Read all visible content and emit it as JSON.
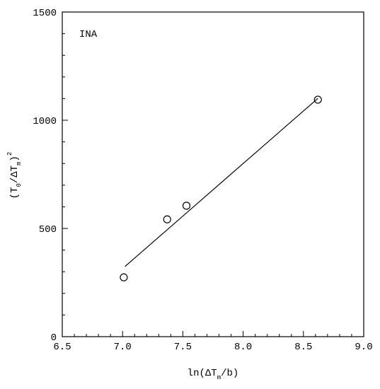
{
  "chart_data": {
    "type": "scatter",
    "annotation": "INA",
    "xlabel": [
      "ln(ΔT",
      "m",
      "/b)"
    ],
    "ylabel": [
      "(T",
      "0",
      "/ΔT",
      "m",
      ")",
      "2"
    ],
    "series": [
      {
        "marker": "open-circle",
        "color": "#000000",
        "x": [
          7.01,
          7.37,
          7.53,
          8.62
        ],
        "values": [
          274,
          542,
          605,
          1095
        ]
      }
    ],
    "fit_line": {
      "color": "#000000",
      "x": [
        7.02,
        8.62
      ],
      "values": [
        324,
        1101
      ]
    },
    "xlim": [
      6.5,
      9.0
    ],
    "xticks": [
      6.5,
      {
        "value": 7,
        "label": "7.0"
      },
      7.5,
      {
        "value": 8,
        "label": "8.0"
      },
      8.5,
      {
        "value": 9,
        "label": "9.0"
      }
    ],
    "x_minor_ticks": [
      6.6,
      6.7,
      6.8,
      6.9,
      7.1,
      7.2,
      7.3,
      7.4,
      7.6,
      7.7,
      7.8,
      7.9,
      8.1,
      8.2,
      8.3,
      8.4,
      8.6,
      8.7,
      8.8,
      8.9
    ],
    "ylim": [
      0,
      1500
    ],
    "yticks": [
      0,
      500,
      1000,
      1500
    ],
    "y_minor_ticks": [
      100,
      200,
      300,
      400,
      600,
      700,
      800,
      900,
      1100,
      1200,
      1300,
      1400
    ],
    "grid": false
  }
}
